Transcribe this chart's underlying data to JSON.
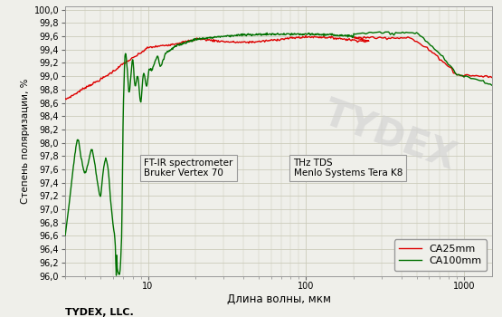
{
  "ylabel": "Степень поляризации, %",
  "xlabel": "Длина волны, мкм",
  "footer": "TYDEX, LLC.",
  "annotation1_line1": "FT-IR spectrometer",
  "annotation1_line2": "Bruker Vertex 70",
  "annotation2_line1": "THz TDS",
  "annotation2_line2": "Menlo Systems Tera K8",
  "legend_ca25": "CA25mm",
  "legend_ca100": "CA100mm",
  "color_ca25": "#dd0000",
  "color_ca100": "#007000",
  "ylim": [
    96.0,
    100.05
  ],
  "xlim_log": [
    3.0,
    1500
  ],
  "background_color": "#efefea",
  "grid_color": "#ccccbb",
  "watermark_color": "#d0d0d0"
}
